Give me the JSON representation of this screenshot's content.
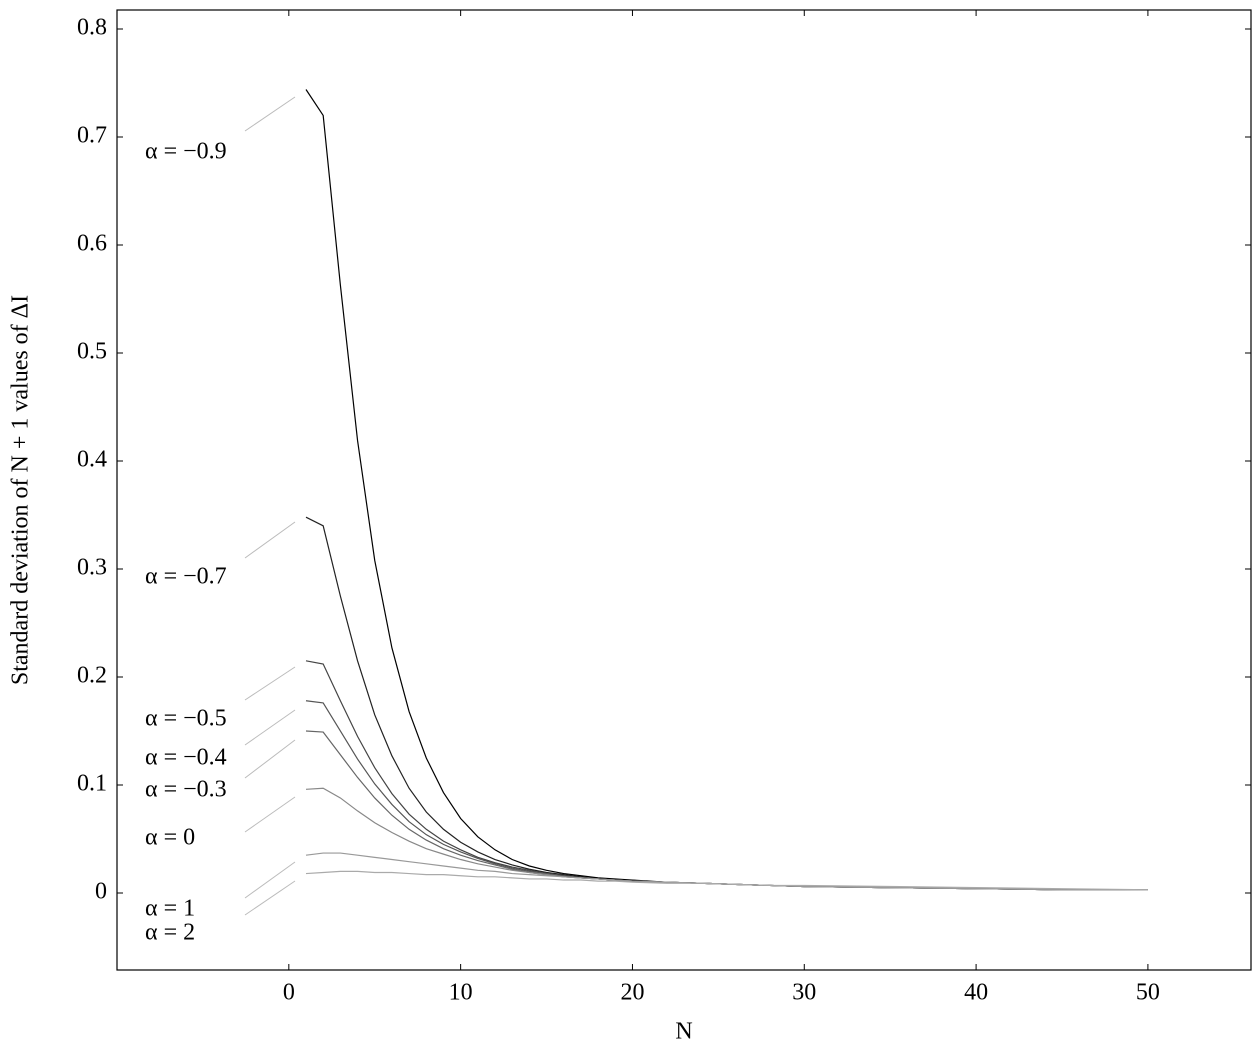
{
  "chart_data": {
    "type": "line",
    "x_label": "N",
    "y_label": "Standard deviation of N + 1 values of ΔI",
    "xlim": [
      -10,
      56
    ],
    "ylim": [
      -0.0713,
      0.8176
    ],
    "xticks": [
      0,
      10,
      20,
      30,
      40,
      50
    ],
    "yticks": [
      0,
      0.1,
      0.2,
      0.3,
      0.4,
      0.5,
      0.6,
      0.7,
      0.8
    ],
    "x": [
      1,
      2,
      3,
      4,
      5,
      6,
      7,
      8,
      9,
      10,
      11,
      12,
      13,
      14,
      15,
      16,
      17,
      18,
      19,
      20,
      22,
      24,
      26,
      28,
      30,
      35,
      40,
      45,
      50
    ],
    "series": [
      {
        "name": "α = −0.9",
        "color": "#000000",
        "values": [
          0.744,
          0.72,
          0.563,
          0.419,
          0.308,
          0.227,
          0.168,
          0.125,
          0.093,
          0.069,
          0.052,
          0.04,
          0.031,
          0.025,
          0.021,
          0.018,
          0.016,
          0.014,
          0.013,
          0.012,
          0.01,
          0.009,
          0.008,
          0.007,
          0.006,
          0.005,
          0.004,
          0.003,
          0.003
        ]
      },
      {
        "name": "α = −0.7",
        "color": "#222222",
        "values": [
          0.348,
          0.34,
          0.275,
          0.215,
          0.165,
          0.127,
          0.097,
          0.075,
          0.059,
          0.047,
          0.038,
          0.031,
          0.026,
          0.022,
          0.019,
          0.017,
          0.015,
          0.013,
          0.012,
          0.011,
          0.01,
          0.009,
          0.008,
          0.007,
          0.006,
          0.005,
          0.004,
          0.003,
          0.003
        ]
      },
      {
        "name": "α = −0.5",
        "color": "#444444",
        "values": [
          0.215,
          0.212,
          0.178,
          0.145,
          0.116,
          0.092,
          0.073,
          0.059,
          0.048,
          0.04,
          0.033,
          0.028,
          0.024,
          0.021,
          0.018,
          0.016,
          0.014,
          0.013,
          0.012,
          0.011,
          0.01,
          0.009,
          0.008,
          0.007,
          0.006,
          0.005,
          0.004,
          0.003,
          0.003
        ]
      },
      {
        "name": "α = −0.4",
        "color": "#555555",
        "values": [
          0.178,
          0.176,
          0.15,
          0.124,
          0.101,
          0.082,
          0.066,
          0.054,
          0.045,
          0.038,
          0.032,
          0.027,
          0.023,
          0.02,
          0.018,
          0.016,
          0.014,
          0.013,
          0.012,
          0.011,
          0.01,
          0.009,
          0.008,
          0.007,
          0.006,
          0.005,
          0.004,
          0.003,
          0.003
        ]
      },
      {
        "name": "α = −0.3",
        "color": "#666666",
        "values": [
          0.15,
          0.149,
          0.128,
          0.107,
          0.088,
          0.072,
          0.059,
          0.049,
          0.041,
          0.035,
          0.03,
          0.026,
          0.022,
          0.019,
          0.017,
          0.015,
          0.014,
          0.013,
          0.012,
          0.011,
          0.01,
          0.009,
          0.008,
          0.007,
          0.006,
          0.005,
          0.004,
          0.003,
          0.003
        ]
      },
      {
        "name": "α = 0",
        "color": "#888888",
        "values": [
          0.096,
          0.097,
          0.088,
          0.076,
          0.065,
          0.056,
          0.048,
          0.041,
          0.036,
          0.031,
          0.027,
          0.024,
          0.021,
          0.019,
          0.017,
          0.015,
          0.014,
          0.013,
          0.012,
          0.011,
          0.01,
          0.009,
          0.008,
          0.007,
          0.006,
          0.005,
          0.004,
          0.003,
          0.003
        ]
      },
      {
        "name": "α = 1",
        "color": "#999999",
        "values": [
          0.035,
          0.037,
          0.037,
          0.035,
          0.033,
          0.031,
          0.029,
          0.027,
          0.025,
          0.023,
          0.021,
          0.02,
          0.018,
          0.017,
          0.016,
          0.015,
          0.014,
          0.013,
          0.012,
          0.011,
          0.01,
          0.009,
          0.008,
          0.007,
          0.006,
          0.005,
          0.004,
          0.003,
          0.003
        ]
      },
      {
        "name": "α = 2",
        "color": "#aaaaaa",
        "values": [
          0.018,
          0.019,
          0.02,
          0.02,
          0.019,
          0.019,
          0.018,
          0.017,
          0.017,
          0.016,
          0.015,
          0.015,
          0.014,
          0.013,
          0.013,
          0.012,
          0.012,
          0.011,
          0.011,
          0.01,
          0.009,
          0.009,
          0.008,
          0.007,
          0.007,
          0.006,
          0.005,
          0.004,
          0.003
        ]
      }
    ]
  }
}
